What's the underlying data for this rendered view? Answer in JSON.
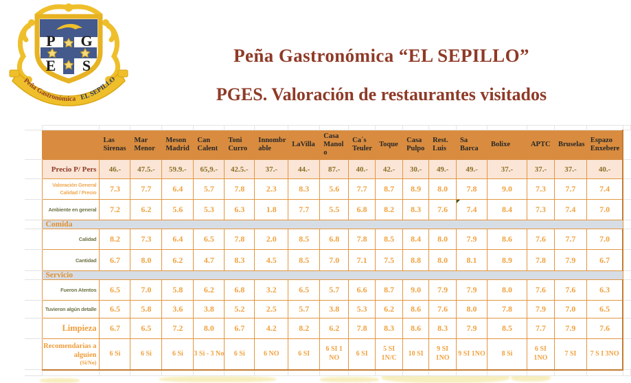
{
  "logo": {
    "letters": [
      "P",
      "G",
      "E",
      "S"
    ],
    "ribbon_left": "Peña Gastronómica",
    "ribbon_right": "EL SEPILLO"
  },
  "titles": {
    "main": "Peña Gastronómica “EL SEPILLO”",
    "sub": "PGES. Valoración de restaurantes visitados"
  },
  "colors": {
    "title_maroon": "#8e3a27",
    "header_bg": "#d98c3f",
    "price_row_bg": "#fbe5d6",
    "section_bg": "#d7dde5",
    "cell_border": "#e2953f",
    "value_orange": "#f0a23f",
    "price_value": "#8a6e26",
    "olive_label": "#6f7446",
    "comment_marker_green": "#375623"
  },
  "table": {
    "restaurants": [
      "Las Sirenas",
      "Mar Menor",
      "Meson Madrid",
      "Can Calent",
      "Toni Curro",
      "Innombrable",
      "LaVilla",
      "Casa Manolo",
      "Ca´s Teuler",
      "Toque",
      "Casa Pulpo",
      "Rest. Luis",
      "Sa Barca",
      "Bolixe",
      "APTC",
      "Bruselas",
      "Espazo Enxebere"
    ],
    "rows": [
      {
        "label": "Precio P/ Pers",
        "kind": "price",
        "label_style": "maroon",
        "values": [
          "46.-",
          "47.5.-",
          "59.9.-",
          "65,9.-",
          "42.5.-",
          "37.-",
          "44.-",
          "87.-",
          "40.-",
          "42.-",
          "30.-",
          "49.-",
          "49.-",
          "37.-",
          "37.-",
          "37.-",
          "40.-"
        ]
      },
      {
        "label": "Valoración General Calidad / Precio",
        "kind": "score",
        "label_style": "orange-sans",
        "values": [
          "7.3",
          "7.7",
          "6.4",
          "5.7",
          "7.8",
          "2.3",
          "8.3",
          "5.6",
          "7.7",
          "8.7",
          "8.9",
          "8.0",
          "7.8",
          "9.0",
          "7.3",
          "7.7",
          "7.4"
        ]
      },
      {
        "label": "Ambiente en general",
        "kind": "score",
        "label_style": "olive",
        "comment_marker_col": 12,
        "values": [
          "7.2",
          "6.2",
          "5.6",
          "5.3",
          "6.3",
          "1.8",
          "7.7",
          "5.5",
          "6.8",
          "8.2",
          "8.3",
          "7.6",
          "7.4",
          "8.4",
          "7.3",
          "7.4",
          "7.0"
        ]
      },
      {
        "section": "Comida"
      },
      {
        "label": "Calidad",
        "kind": "score",
        "label_style": "olive",
        "values": [
          "8.2",
          "7.3",
          "6.4",
          "6.5",
          "7.8",
          "2.0",
          "8.5",
          "6.8",
          "7.8",
          "8.5",
          "8.4",
          "8.0",
          "7.9",
          "8.6",
          "7.6",
          "7.7",
          "7.0"
        ]
      },
      {
        "label": "Cantidad",
        "kind": "score",
        "label_style": "olive",
        "values": [
          "6.7",
          "8.0",
          "6.2",
          "4.7",
          "8.3",
          "4.5",
          "8.5",
          "7.0",
          "7.1",
          "7.5",
          "8.8",
          "8.0",
          "8.1",
          "8.9",
          "7.8",
          "7.9",
          "6.7"
        ]
      },
      {
        "section": "Servicio"
      },
      {
        "label": "Fueron Atentos",
        "kind": "score",
        "label_style": "olive",
        "values": [
          "6.5",
          "7.0",
          "5.8",
          "6.2",
          "6.8",
          "3.2",
          "6.5",
          "5.7",
          "6.6",
          "8.7",
          "9.0",
          "7.9",
          "7.9",
          "8.0",
          "7.6",
          "7.6",
          "6.3"
        ]
      },
      {
        "label": "Tuvieron algún detalle",
        "kind": "score",
        "label_style": "olive",
        "values": [
          "6.5",
          "5.8",
          "3.6",
          "3.8",
          "5.2",
          "2.5",
          "5.7",
          "3.8",
          "5.3",
          "6.2",
          "8.6",
          "7.6",
          "8.0",
          "7.8",
          "7.9",
          "7.0",
          "6.5"
        ]
      },
      {
        "label": "Limpieza",
        "kind": "score",
        "label_style": "orange-serif",
        "values": [
          "6.7",
          "6.5",
          "7.2",
          "8.0",
          "6.7",
          "4.2",
          "8.2",
          "6.2",
          "7.8",
          "8.3",
          "8.6",
          "8.3",
          "7.9",
          "8.5",
          "7.7",
          "7.9",
          "7.6"
        ]
      },
      {
        "label": "Recomendarias a alguien",
        "label_sub": "(Si/No)",
        "kind": "yesno",
        "label_style": "orange-serif-sm",
        "values": [
          "6 Si",
          "6 Si",
          "6 Si",
          "3 Si  - 3 No",
          "6 Si",
          "6 NO",
          "6 SI",
          "6 SI 1 NO",
          "6 SI",
          "5 SI 1N/C",
          "10 SI",
          "9 SI 1NO",
          "9 SI 1NO",
          "8 Si",
          "6 SI 1NO",
          "7 SI",
          "7 S I 3NO"
        ]
      }
    ]
  }
}
